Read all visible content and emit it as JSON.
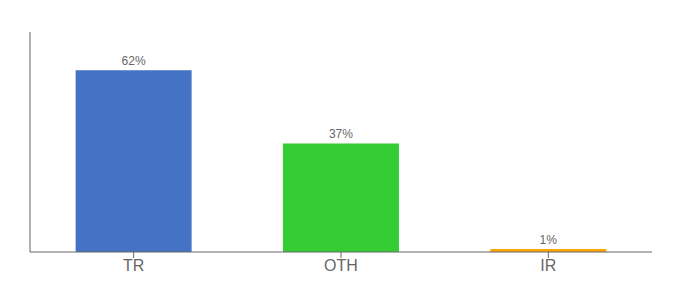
{
  "chart_data": {
    "type": "bar",
    "categories": [
      "TR",
      "OTH",
      "IR"
    ],
    "values": [
      62,
      37,
      1
    ],
    "value_labels": [
      "62%",
      "37%",
      "1%"
    ],
    "data_labels": true,
    "colors": [
      "#4472C4",
      "#33CC33",
      "#FFA500"
    ],
    "ylim": [
      0,
      75
    ],
    "tick_labels": "x",
    "grid": false
  }
}
